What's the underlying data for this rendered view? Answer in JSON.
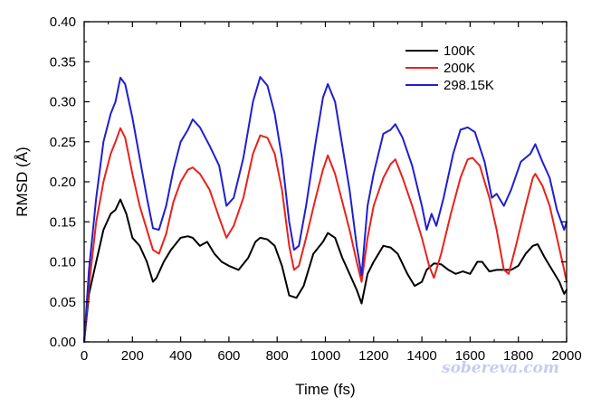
{
  "chart_data": {
    "type": "line",
    "title": "",
    "xlabel": "Time (fs)",
    "ylabel": "RMSD (Å)",
    "xlim": [
      0,
      2000
    ],
    "ylim": [
      0,
      0.4
    ],
    "xticks": [
      "0",
      "200",
      "400",
      "600",
      "800",
      "1000",
      "1200",
      "1400",
      "1600",
      "1800",
      "2000"
    ],
    "yticks": [
      "0.00",
      "0.05",
      "0.10",
      "0.15",
      "0.20",
      "0.25",
      "0.30",
      "0.35",
      "0.40"
    ],
    "grid": false,
    "legend_position": "top-right",
    "watermark": "sobereva.com",
    "series": [
      {
        "name": "100K",
        "color": "#000000",
        "points": [
          [
            0,
            0.0
          ],
          [
            20,
            0.06
          ],
          [
            50,
            0.1
          ],
          [
            80,
            0.14
          ],
          [
            110,
            0.16
          ],
          [
            130,
            0.165
          ],
          [
            150,
            0.178
          ],
          [
            175,
            0.16
          ],
          [
            200,
            0.13
          ],
          [
            230,
            0.12
          ],
          [
            260,
            0.1
          ],
          [
            285,
            0.075
          ],
          [
            300,
            0.08
          ],
          [
            330,
            0.1
          ],
          [
            360,
            0.115
          ],
          [
            400,
            0.13
          ],
          [
            430,
            0.132
          ],
          [
            450,
            0.13
          ],
          [
            480,
            0.12
          ],
          [
            510,
            0.125
          ],
          [
            540,
            0.11
          ],
          [
            570,
            0.1
          ],
          [
            600,
            0.095
          ],
          [
            640,
            0.09
          ],
          [
            680,
            0.105
          ],
          [
            710,
            0.125
          ],
          [
            730,
            0.13
          ],
          [
            760,
            0.128
          ],
          [
            790,
            0.12
          ],
          [
            820,
            0.095
          ],
          [
            850,
            0.058
          ],
          [
            880,
            0.055
          ],
          [
            910,
            0.07
          ],
          [
            950,
            0.11
          ],
          [
            990,
            0.125
          ],
          [
            1010,
            0.136
          ],
          [
            1040,
            0.13
          ],
          [
            1070,
            0.105
          ],
          [
            1100,
            0.085
          ],
          [
            1130,
            0.065
          ],
          [
            1150,
            0.048
          ],
          [
            1175,
            0.085
          ],
          [
            1200,
            0.1
          ],
          [
            1240,
            0.12
          ],
          [
            1270,
            0.118
          ],
          [
            1300,
            0.11
          ],
          [
            1340,
            0.085
          ],
          [
            1370,
            0.07
          ],
          [
            1400,
            0.075
          ],
          [
            1420,
            0.09
          ],
          [
            1450,
            0.098
          ],
          [
            1480,
            0.097
          ],
          [
            1510,
            0.09
          ],
          [
            1540,
            0.085
          ],
          [
            1570,
            0.088
          ],
          [
            1600,
            0.085
          ],
          [
            1630,
            0.1
          ],
          [
            1650,
            0.1
          ],
          [
            1680,
            0.088
          ],
          [
            1710,
            0.09
          ],
          [
            1740,
            0.09
          ],
          [
            1770,
            0.09
          ],
          [
            1800,
            0.095
          ],
          [
            1830,
            0.11
          ],
          [
            1860,
            0.12
          ],
          [
            1880,
            0.122
          ],
          [
            1910,
            0.105
          ],
          [
            1940,
            0.09
          ],
          [
            1970,
            0.075
          ],
          [
            1990,
            0.06
          ],
          [
            2000,
            0.065
          ]
        ]
      },
      {
        "name": "200K",
        "color": "#e8221c",
        "points": [
          [
            0,
            0.0
          ],
          [
            20,
            0.07
          ],
          [
            50,
            0.15
          ],
          [
            80,
            0.2
          ],
          [
            110,
            0.235
          ],
          [
            130,
            0.25
          ],
          [
            150,
            0.267
          ],
          [
            170,
            0.255
          ],
          [
            200,
            0.21
          ],
          [
            230,
            0.17
          ],
          [
            260,
            0.14
          ],
          [
            285,
            0.115
          ],
          [
            310,
            0.11
          ],
          [
            340,
            0.135
          ],
          [
            370,
            0.175
          ],
          [
            400,
            0.2
          ],
          [
            430,
            0.215
          ],
          [
            450,
            0.218
          ],
          [
            480,
            0.21
          ],
          [
            520,
            0.19
          ],
          [
            560,
            0.155
          ],
          [
            590,
            0.13
          ],
          [
            620,
            0.145
          ],
          [
            660,
            0.18
          ],
          [
            700,
            0.235
          ],
          [
            730,
            0.258
          ],
          [
            760,
            0.255
          ],
          [
            790,
            0.235
          ],
          [
            820,
            0.19
          ],
          [
            850,
            0.12
          ],
          [
            870,
            0.09
          ],
          [
            890,
            0.095
          ],
          [
            920,
            0.13
          ],
          [
            960,
            0.18
          ],
          [
            990,
            0.215
          ],
          [
            1010,
            0.233
          ],
          [
            1040,
            0.21
          ],
          [
            1070,
            0.175
          ],
          [
            1100,
            0.14
          ],
          [
            1130,
            0.1
          ],
          [
            1150,
            0.075
          ],
          [
            1175,
            0.13
          ],
          [
            1200,
            0.17
          ],
          [
            1240,
            0.205
          ],
          [
            1270,
            0.222
          ],
          [
            1290,
            0.228
          ],
          [
            1320,
            0.205
          ],
          [
            1360,
            0.17
          ],
          [
            1400,
            0.13
          ],
          [
            1430,
            0.095
          ],
          [
            1450,
            0.08
          ],
          [
            1480,
            0.11
          ],
          [
            1520,
            0.16
          ],
          [
            1560,
            0.205
          ],
          [
            1590,
            0.228
          ],
          [
            1610,
            0.23
          ],
          [
            1640,
            0.22
          ],
          [
            1680,
            0.18
          ],
          [
            1710,
            0.14
          ],
          [
            1740,
            0.09
          ],
          [
            1760,
            0.085
          ],
          [
            1790,
            0.12
          ],
          [
            1830,
            0.17
          ],
          [
            1860,
            0.205
          ],
          [
            1870,
            0.21
          ],
          [
            1900,
            0.195
          ],
          [
            1930,
            0.17
          ],
          [
            1960,
            0.13
          ],
          [
            1990,
            0.09
          ],
          [
            2000,
            0.075
          ]
        ]
      },
      {
        "name": "298.15K",
        "color": "#1f1fd0",
        "points": [
          [
            0,
            0.0
          ],
          [
            20,
            0.09
          ],
          [
            50,
            0.18
          ],
          [
            80,
            0.25
          ],
          [
            110,
            0.285
          ],
          [
            130,
            0.3
          ],
          [
            150,
            0.33
          ],
          [
            170,
            0.322
          ],
          [
            200,
            0.28
          ],
          [
            230,
            0.23
          ],
          [
            260,
            0.18
          ],
          [
            285,
            0.142
          ],
          [
            310,
            0.14
          ],
          [
            340,
            0.17
          ],
          [
            370,
            0.215
          ],
          [
            400,
            0.25
          ],
          [
            430,
            0.265
          ],
          [
            450,
            0.278
          ],
          [
            480,
            0.268
          ],
          [
            520,
            0.245
          ],
          [
            560,
            0.22
          ],
          [
            590,
            0.17
          ],
          [
            620,
            0.18
          ],
          [
            660,
            0.23
          ],
          [
            700,
            0.3
          ],
          [
            730,
            0.331
          ],
          [
            760,
            0.32
          ],
          [
            790,
            0.285
          ],
          [
            820,
            0.23
          ],
          [
            850,
            0.15
          ],
          [
            870,
            0.115
          ],
          [
            890,
            0.12
          ],
          [
            920,
            0.17
          ],
          [
            960,
            0.25
          ],
          [
            990,
            0.305
          ],
          [
            1010,
            0.322
          ],
          [
            1040,
            0.3
          ],
          [
            1070,
            0.245
          ],
          [
            1100,
            0.19
          ],
          [
            1130,
            0.12
          ],
          [
            1150,
            0.083
          ],
          [
            1175,
            0.17
          ],
          [
            1200,
            0.21
          ],
          [
            1240,
            0.26
          ],
          [
            1270,
            0.265
          ],
          [
            1290,
            0.272
          ],
          [
            1320,
            0.255
          ],
          [
            1360,
            0.22
          ],
          [
            1400,
            0.17
          ],
          [
            1420,
            0.14
          ],
          [
            1440,
            0.16
          ],
          [
            1460,
            0.145
          ],
          [
            1490,
            0.18
          ],
          [
            1530,
            0.235
          ],
          [
            1560,
            0.265
          ],
          [
            1590,
            0.268
          ],
          [
            1620,
            0.262
          ],
          [
            1660,
            0.225
          ],
          [
            1690,
            0.18
          ],
          [
            1710,
            0.185
          ],
          [
            1740,
            0.17
          ],
          [
            1770,
            0.19
          ],
          [
            1810,
            0.225
          ],
          [
            1850,
            0.235
          ],
          [
            1870,
            0.247
          ],
          [
            1900,
            0.225
          ],
          [
            1930,
            0.205
          ],
          [
            1960,
            0.165
          ],
          [
            1990,
            0.14
          ],
          [
            2000,
            0.15
          ]
        ]
      }
    ]
  }
}
